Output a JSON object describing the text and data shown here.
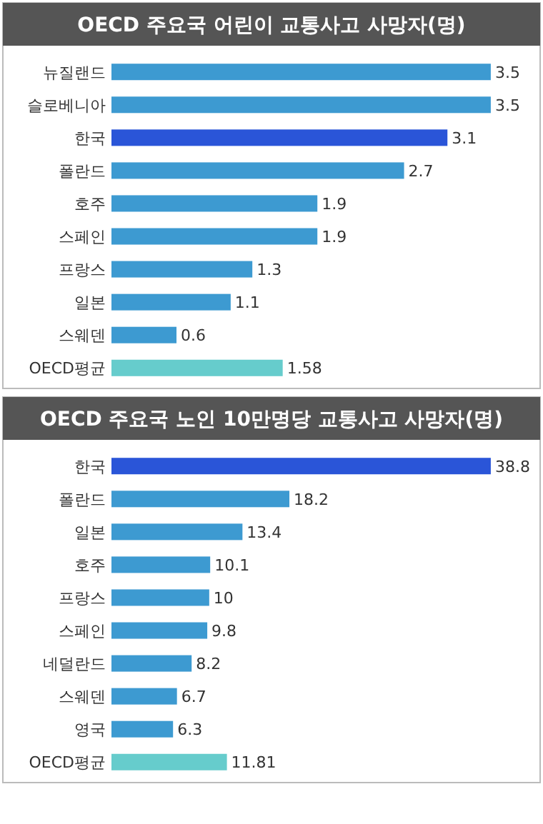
{
  "chart_data": [
    {
      "type": "bar",
      "orientation": "horizontal",
      "title": "OECD 주요국 어린이 교통사고 사망자(명)",
      "categories": [
        "뉴질랜드",
        "슬로베니아",
        "한국",
        "폴란드",
        "호주",
        "스페인",
        "프랑스",
        "일본",
        "스웨덴",
        "OECD평균"
      ],
      "values": [
        3.5,
        3.5,
        3.1,
        2.7,
        1.9,
        1.9,
        1.3,
        1.1,
        0.6,
        1.58
      ],
      "colors": [
        "#3d9ad1",
        "#3d9ad1",
        "#2a55d8",
        "#3d9ad1",
        "#3d9ad1",
        "#3d9ad1",
        "#3d9ad1",
        "#3d9ad1",
        "#3d9ad1",
        "#66cccc"
      ],
      "data_labels": true
    },
    {
      "type": "bar",
      "orientation": "horizontal",
      "title": "OECD 주요국 노인 10만명당 교통사고 사망자(명)",
      "categories": [
        "한국",
        "폴란드",
        "일본",
        "호주",
        "프랑스",
        "스페인",
        "네덜란드",
        "스웨덴",
        "영국",
        "OECD평균"
      ],
      "values": [
        38.8,
        18.2,
        13.4,
        10.1,
        10,
        9.8,
        8.2,
        6.7,
        6.3,
        11.81
      ],
      "colors": [
        "#2a55d8",
        "#3d9ad1",
        "#3d9ad1",
        "#3d9ad1",
        "#3d9ad1",
        "#3d9ad1",
        "#3d9ad1",
        "#3d9ad1",
        "#3d9ad1",
        "#66cccc"
      ],
      "data_labels": true
    }
  ]
}
